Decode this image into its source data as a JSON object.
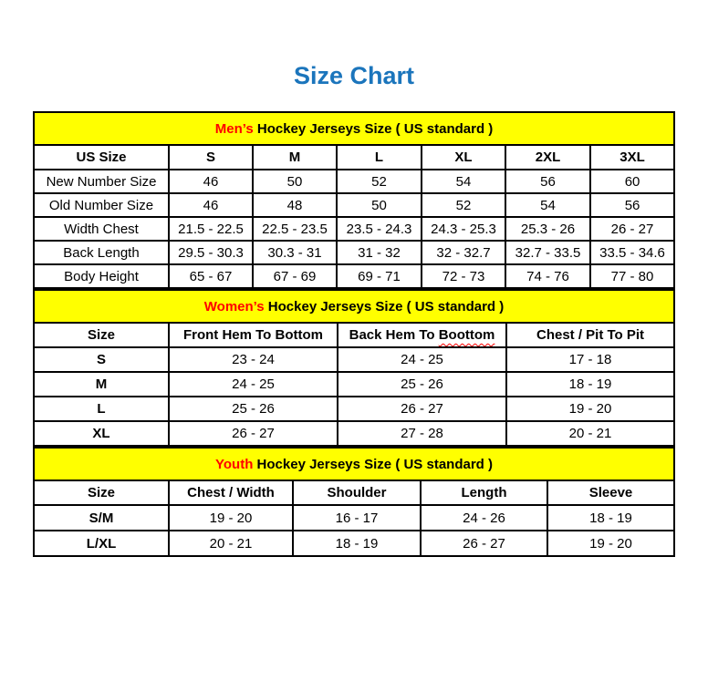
{
  "page_title": "Size Chart",
  "colors": {
    "title_blue": "#1B75BC",
    "band_yellow": "#FFFF00",
    "accent_red": "#FF0000",
    "border_black": "#000000"
  },
  "sections": [
    {
      "id": "mens",
      "band": {
        "accent": "Men’s",
        "rest": " Hockey Jerseys Size ( US standard )"
      },
      "columns": [
        {
          "label": "US Size"
        },
        {
          "label": "S"
        },
        {
          "label": "M"
        },
        {
          "label": "L"
        },
        {
          "label": "XL"
        },
        {
          "label": "2XL"
        },
        {
          "label": "3XL"
        }
      ],
      "bold_row_labels": false,
      "rows": [
        {
          "label": "New Number Size",
          "values": [
            "46",
            "50",
            "52",
            "54",
            "56",
            "60"
          ]
        },
        {
          "label": "Old Number Size",
          "values": [
            "46",
            "48",
            "50",
            "52",
            "54",
            "56"
          ]
        },
        {
          "label": "Width Chest",
          "values": [
            "21.5 - 22.5",
            "22.5 - 23.5",
            "23.5 - 24.3",
            "24.3 - 25.3",
            "25.3 - 26",
            "26 - 27"
          ]
        },
        {
          "label": "Back Length",
          "values": [
            "29.5 - 30.3",
            "30.3 - 31",
            "31 - 32",
            "32 - 32.7",
            "32.7 - 33.5",
            "33.5 - 34.6"
          ]
        },
        {
          "label": "Body Height",
          "values": [
            "65 - 67",
            "67 - 69",
            "69 - 71",
            "72 - 73",
            "74 - 76",
            "77 - 80"
          ]
        }
      ]
    },
    {
      "id": "womens",
      "band": {
        "accent": "Women’s",
        "rest": " Hockey Jerseys Size ( US standard )"
      },
      "columns": [
        {
          "label": "Size"
        },
        {
          "label": "Front Hem To Bottom"
        },
        {
          "label": "Back Hem To Boottom",
          "misspelled": "Boottom"
        },
        {
          "label": "Chest / Pit To Pit"
        }
      ],
      "bold_row_labels": true,
      "rows": [
        {
          "label": "S",
          "values": [
            "23 - 24",
            "24 - 25",
            "17 - 18"
          ]
        },
        {
          "label": "M",
          "values": [
            "24 - 25",
            "25 - 26",
            "18 - 19"
          ]
        },
        {
          "label": "L",
          "values": [
            "25 - 26",
            "26 - 27",
            "19 - 20"
          ]
        },
        {
          "label": "XL",
          "values": [
            "26 - 27",
            "27 - 28",
            "20 - 21"
          ]
        }
      ]
    },
    {
      "id": "youth",
      "band": {
        "accent": "Youth",
        "rest": " Hockey Jerseys Size ( US standard )"
      },
      "columns": [
        {
          "label": "Size"
        },
        {
          "label": "Chest / Width"
        },
        {
          "label": "Shoulder"
        },
        {
          "label": "Length"
        },
        {
          "label": "Sleeve"
        }
      ],
      "bold_row_labels": true,
      "rows": [
        {
          "label": "S/M",
          "values": [
            "19 - 20",
            "16 - 17",
            "24 - 26",
            "18 - 19"
          ]
        },
        {
          "label": "L/XL",
          "values": [
            "20 - 21",
            "18 - 19",
            "26 - 27",
            "19 - 20"
          ]
        }
      ]
    }
  ]
}
